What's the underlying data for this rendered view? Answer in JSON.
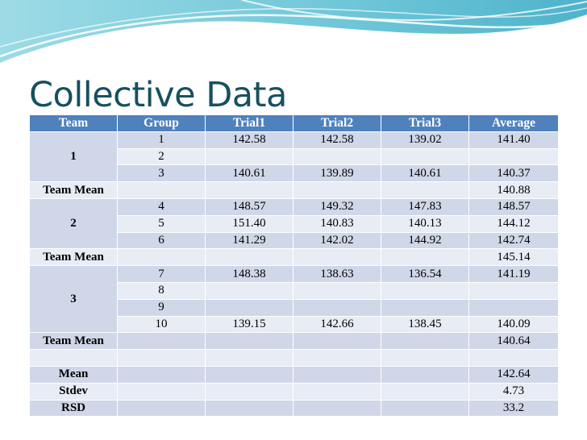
{
  "title": "Collective Data",
  "colors": {
    "title": "#17505f",
    "header_bg": "#4f81bd",
    "row_dark": "#cfd7e8",
    "row_light": "#e8ecf5",
    "banner": "#6ec6d8"
  },
  "table": {
    "headers": [
      "Team",
      "Group",
      "Trial1",
      "Trial2",
      "Trial3",
      "Average"
    ],
    "teams": [
      {
        "team": "1",
        "rows": [
          {
            "group": "1",
            "trial1": "142.58",
            "trial2": "142.58",
            "trial3": "139.02",
            "average": "141.40"
          },
          {
            "group": "2",
            "trial1": "",
            "trial2": "",
            "trial3": "",
            "average": ""
          },
          {
            "group": "3",
            "trial1": "140.61",
            "trial2": "139.89",
            "trial3": "140.61",
            "average": "140.37"
          }
        ],
        "mean_label": "Team Mean",
        "mean_value": "140.88"
      },
      {
        "team": "2",
        "rows": [
          {
            "group": "4",
            "trial1": "148.57",
            "trial2": "149.32",
            "trial3": "147.83",
            "average": "148.57"
          },
          {
            "group": "5",
            "trial1": "151.40",
            "trial2": "140.83",
            "trial3": "140.13",
            "average": "144.12"
          },
          {
            "group": "6",
            "trial1": "141.29",
            "trial2": "142.02",
            "trial3": "144.92",
            "average": "142.74"
          }
        ],
        "mean_label": "Team Mean",
        "mean_value": "145.14"
      },
      {
        "team": "3",
        "rows": [
          {
            "group": "7",
            "trial1": "148.38",
            "trial2": "138.63",
            "trial3": "136.54",
            "average": "141.19"
          },
          {
            "group": "8",
            "trial1": "",
            "trial2": "",
            "trial3": "",
            "average": ""
          },
          {
            "group": "9",
            "trial1": "",
            "trial2": "",
            "trial3": "",
            "average": ""
          },
          {
            "group": "10",
            "trial1": "139.15",
            "trial2": "142.66",
            "trial3": "138.45",
            "average": "140.09"
          }
        ],
        "mean_label": "Team Mean",
        "mean_value": "140.64"
      }
    ],
    "summary": [
      {
        "label": "Mean",
        "value": "142.64"
      },
      {
        "label": "Stdev",
        "value": "4.73"
      },
      {
        "label": "RSD",
        "value": "33.2"
      }
    ]
  }
}
